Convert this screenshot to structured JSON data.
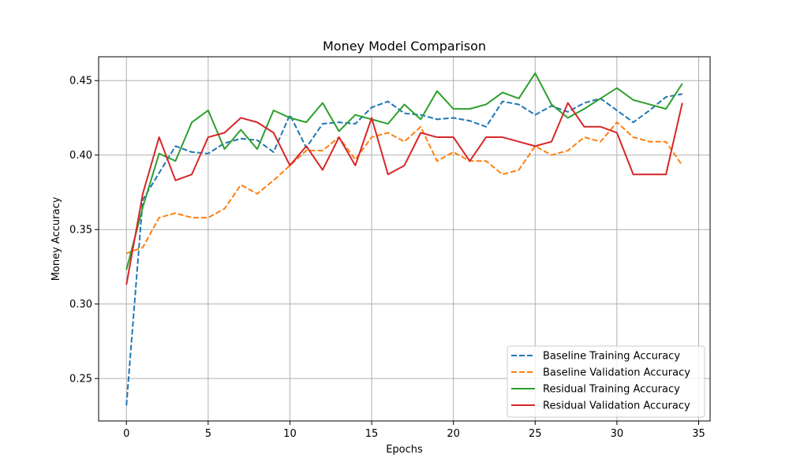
{
  "chart_data": {
    "type": "line",
    "title": "Money Model Comparison",
    "xlabel": "Epochs",
    "ylabel": "Money Accuracy",
    "xlim": [
      -1.7,
      35.7
    ],
    "ylim": [
      0.2215,
      0.466
    ],
    "xticks": [
      0,
      5,
      10,
      15,
      20,
      25,
      30,
      35
    ],
    "yticks": [
      0.25,
      0.3,
      0.35,
      0.4,
      0.45
    ],
    "ytick_labels": [
      "0.25",
      "0.30",
      "0.35",
      "0.40",
      "0.45"
    ],
    "grid": true,
    "legend_position": "lower-right",
    "x": [
      0,
      1,
      2,
      3,
      4,
      5,
      6,
      7,
      8,
      9,
      10,
      11,
      12,
      13,
      14,
      15,
      16,
      17,
      18,
      19,
      20,
      21,
      22,
      23,
      24,
      25,
      26,
      27,
      28,
      29,
      30,
      31,
      32,
      33,
      34
    ],
    "series": [
      {
        "name": "Baseline Training Accuracy",
        "color": "#1f77b4",
        "dash": "dashed",
        "values": [
          0.232,
          0.37,
          0.388,
          0.406,
          0.402,
          0.401,
          0.408,
          0.411,
          0.41,
          0.402,
          0.427,
          0.405,
          0.421,
          0.422,
          0.421,
          0.432,
          0.436,
          0.428,
          0.427,
          0.424,
          0.425,
          0.423,
          0.419,
          0.436,
          0.434,
          0.427,
          0.433,
          0.429,
          0.435,
          0.438,
          0.43,
          0.422,
          0.43,
          0.439,
          0.441
        ]
      },
      {
        "name": "Baseline Validation Accuracy",
        "color": "#ff7f0e",
        "dash": "dashed",
        "values": [
          0.334,
          0.338,
          0.358,
          0.361,
          0.358,
          0.358,
          0.364,
          0.38,
          0.374,
          0.383,
          0.393,
          0.403,
          0.403,
          0.412,
          0.397,
          0.412,
          0.415,
          0.409,
          0.419,
          0.396,
          0.402,
          0.396,
          0.396,
          0.387,
          0.39,
          0.406,
          0.4,
          0.403,
          0.412,
          0.409,
          0.422,
          0.412,
          0.409,
          0.409,
          0.393
        ]
      },
      {
        "name": "Residual Training Accuracy",
        "color": "#2ca02c",
        "dash": "solid",
        "values": [
          0.323,
          0.365,
          0.401,
          0.396,
          0.422,
          0.43,
          0.404,
          0.417,
          0.404,
          0.43,
          0.425,
          0.422,
          0.435,
          0.416,
          0.427,
          0.424,
          0.421,
          0.434,
          0.424,
          0.443,
          0.431,
          0.431,
          0.434,
          0.442,
          0.438,
          0.455,
          0.434,
          0.425,
          0.431,
          0.438,
          0.445,
          0.437,
          0.434,
          0.431,
          0.448
        ]
      },
      {
        "name": "Residual Validation Accuracy",
        "color": "#d62728",
        "dash": "solid",
        "values": [
          0.313,
          0.374,
          0.412,
          0.383,
          0.387,
          0.412,
          0.415,
          0.425,
          0.422,
          0.415,
          0.393,
          0.406,
          0.39,
          0.412,
          0.393,
          0.425,
          0.387,
          0.393,
          0.415,
          0.412,
          0.412,
          0.396,
          0.412,
          0.412,
          0.409,
          0.406,
          0.409,
          0.435,
          0.419,
          0.419,
          0.415,
          0.387,
          0.387,
          0.387,
          0.435
        ]
      }
    ]
  }
}
